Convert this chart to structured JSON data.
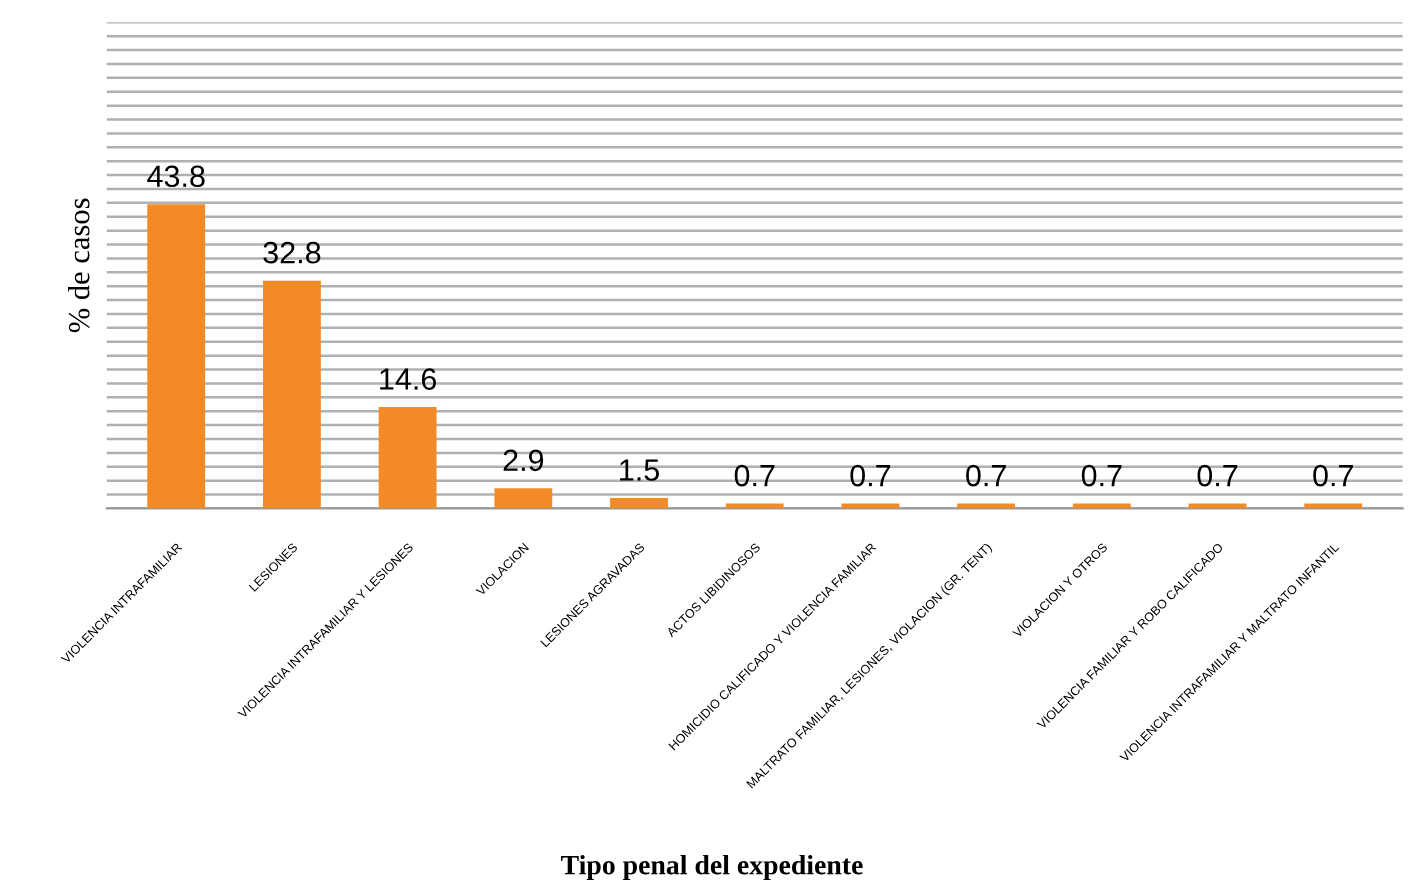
{
  "chart_data": {
    "type": "bar",
    "xlabel": "Tipo penal del expediente",
    "ylabel": "% de casos",
    "categories": [
      "VIOLENCIA INTRAFAMILIAR",
      "LESIONES",
      "VIOLENCIA INTRAFAMILIAR Y LESIONES",
      "VIOLACION",
      "LESIONES AGRAVADAS",
      "ACTOS LIBIDINOSOS",
      "HOMICIDIO CALIFICADO Y VIOLENCIA FAMILIAR",
      "MALTRATO FAMILIAR, LESIONES, VIOLACION (GR. TENT)",
      "VIOLACION Y OTROS",
      "VIOLENCIA FAMILIAR Y ROBO CALIFICADO",
      "VIOLENCIA INTRAFAMILIAR Y MALTRATO INFANTIL"
    ],
    "values": [
      43.8,
      32.8,
      14.6,
      2.9,
      1.5,
      0.7,
      0.7,
      0.7,
      0.7,
      0.7,
      0.7
    ],
    "color": "#f28a26",
    "data_labels": true,
    "grid": "y",
    "tick_labels": "x",
    "ylim": [
      0,
      70
    ],
    "yticks": [
      {
        "value": 0,
        "label": null
      },
      {
        "value": 2,
        "label": null
      },
      {
        "value": 4,
        "label": null
      },
      {
        "value": 6,
        "label": null
      },
      {
        "value": 8,
        "label": null
      },
      {
        "value": 10,
        "label": null
      },
      {
        "value": 12,
        "label": null
      },
      {
        "value": 14,
        "label": null
      },
      {
        "value": 16,
        "label": null
      },
      {
        "value": 18,
        "label": null
      },
      {
        "value": 20,
        "label": null
      },
      {
        "value": 22,
        "label": null
      },
      {
        "value": 24,
        "label": null
      },
      {
        "value": 26,
        "label": null
      },
      {
        "value": 28,
        "label": null
      },
      {
        "value": 30,
        "label": null
      },
      {
        "value": 32,
        "label": null
      },
      {
        "value": 34,
        "label": null
      },
      {
        "value": 36,
        "label": null
      },
      {
        "value": 38,
        "label": null
      },
      {
        "value": 40,
        "label": null
      },
      {
        "value": 42,
        "label": null
      },
      {
        "value": 44,
        "label": null
      },
      {
        "value": 46,
        "label": null
      },
      {
        "value": 48,
        "label": null
      },
      {
        "value": 50,
        "label": null
      },
      {
        "value": 52,
        "label": null
      },
      {
        "value": 54,
        "label": null
      },
      {
        "value": 56,
        "label": null
      },
      {
        "value": 58,
        "label": null
      },
      {
        "value": 60,
        "label": null
      },
      {
        "value": 62,
        "label": null
      },
      {
        "value": 64,
        "label": null
      },
      {
        "value": 66,
        "label": null
      },
      {
        "value": 68,
        "label": null
      },
      {
        "value": 70,
        "label": null
      }
    ]
  }
}
